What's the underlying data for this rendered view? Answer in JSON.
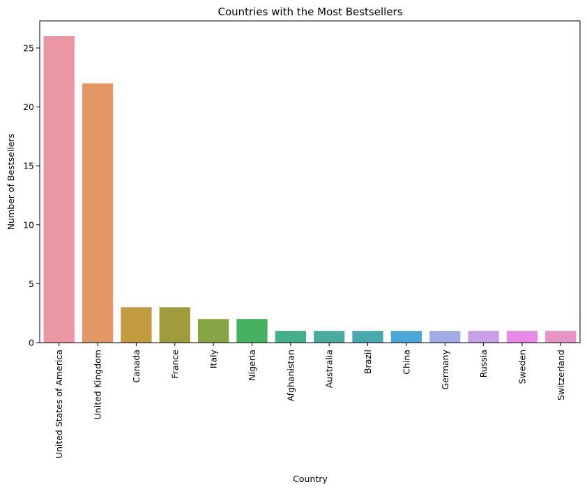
{
  "chart_data": {
    "type": "bar",
    "title": "Countries with the Most Bestsellers",
    "xlabel": "Country",
    "ylabel": "Number of Bestsellers",
    "categories": [
      "United States of America",
      "United Kingdom",
      "Canada",
      "France",
      "Italy",
      "Nigeria",
      "Afghanistan",
      "Australia",
      "Brazil",
      "China",
      "Germany",
      "Russia",
      "Sweden",
      "Switzerland"
    ],
    "values": [
      26,
      22,
      3,
      3,
      2,
      2,
      1,
      1,
      1,
      1,
      1,
      1,
      1,
      1
    ],
    "colors": [
      "#ea96a3",
      "#e39766",
      "#c29a40",
      "#a09c3c",
      "#87a643",
      "#45b05d",
      "#45ae8c",
      "#48ab9d",
      "#48a9ae",
      "#4ba9d9",
      "#a1ace9",
      "#c79ee8",
      "#e98be6",
      "#e993c7"
    ],
    "ylim": [
      0,
      27.3
    ],
    "yticks": [
      0,
      5,
      10,
      15,
      20,
      25
    ],
    "grid": false,
    "legend": "none"
  }
}
